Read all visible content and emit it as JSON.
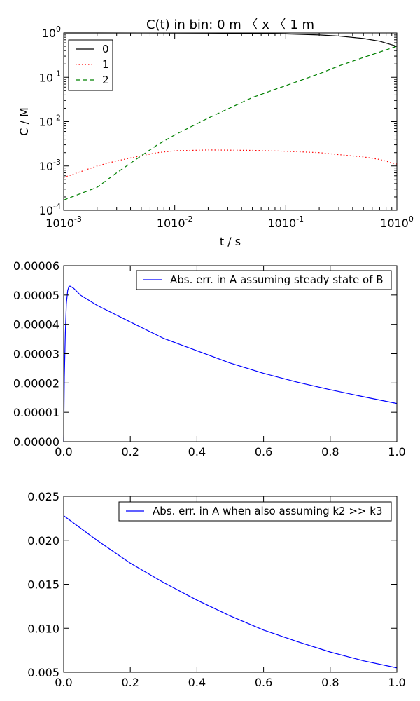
{
  "chart_data": [
    {
      "type": "line",
      "title": "C(t) in bin: 0 m 〈 x 〈 1 m",
      "xlabel": "t / s",
      "ylabel": "C / M",
      "xscale": "log",
      "yscale": "log",
      "xlim": [
        0.001,
        1
      ],
      "ylim": [
        0.0001,
        1
      ],
      "grid": false,
      "legend_position": "top-left",
      "xticks": [
        {
          "value": 0.001,
          "base": "10",
          "exp": "-3"
        },
        {
          "value": 0.01,
          "base": "10",
          "exp": "-2"
        },
        {
          "value": 0.1,
          "base": "10",
          "exp": "-1"
        },
        {
          "value": 1,
          "base": "10",
          "exp": "0"
        }
      ],
      "yticks": [
        {
          "value": 0.0001,
          "base": "10",
          "exp": "-4"
        },
        {
          "value": 0.001,
          "base": "10",
          "exp": "-3"
        },
        {
          "value": 0.01,
          "base": "10",
          "exp": "-2"
        },
        {
          "value": 0.1,
          "base": "10",
          "exp": "-1"
        },
        {
          "value": 1,
          "base": "10",
          "exp": "0"
        }
      ],
      "series": [
        {
          "name": "0",
          "color": "#000000",
          "dash": "solid",
          "x": [
            0.001,
            0.002,
            0.005,
            0.01,
            0.02,
            0.05,
            0.1,
            0.2,
            0.3,
            0.5,
            0.7,
            1.0
          ],
          "y": [
            0.9995,
            0.999,
            0.997,
            0.995,
            0.99,
            0.975,
            0.95,
            0.9,
            0.85,
            0.75,
            0.65,
            0.5
          ]
        },
        {
          "name": "1",
          "color": "#ff0000",
          "dash": "dotted",
          "x": [
            0.001,
            0.002,
            0.003,
            0.005,
            0.007,
            0.01,
            0.02,
            0.05,
            0.1,
            0.2,
            0.3,
            0.5,
            0.7,
            1.0
          ],
          "y": [
            0.00055,
            0.001,
            0.0013,
            0.0017,
            0.002,
            0.0022,
            0.0023,
            0.00225,
            0.00215,
            0.002,
            0.0018,
            0.0016,
            0.0014,
            0.0011
          ]
        },
        {
          "name": "2",
          "color": "#008000",
          "dash": "dashed",
          "x": [
            0.001,
            0.002,
            0.003,
            0.005,
            0.007,
            0.01,
            0.02,
            0.05,
            0.1,
            0.2,
            0.3,
            0.5,
            0.7,
            1.0
          ],
          "y": [
            0.00017,
            0.00033,
            0.0007,
            0.0017,
            0.003,
            0.005,
            0.012,
            0.035,
            0.065,
            0.12,
            0.18,
            0.28,
            0.37,
            0.5
          ]
        }
      ]
    },
    {
      "type": "line",
      "xlim": [
        0,
        1
      ],
      "ylim": [
        0,
        6e-05
      ],
      "grid": false,
      "legend_position": "top-right",
      "xticks": [
        "0.0",
        "0.2",
        "0.4",
        "0.6",
        "0.8",
        "1.0"
      ],
      "yticks": [
        "0.00000",
        "0.00001",
        "0.00002",
        "0.00003",
        "0.00004",
        "0.00005",
        "0.00006"
      ],
      "series": [
        {
          "name": "Abs. err. in A assuming steady state of B",
          "color": "#0000ff",
          "dash": "solid",
          "x": [
            0,
            0.002,
            0.005,
            0.008,
            0.012,
            0.016,
            0.02,
            0.03,
            0.05,
            0.1,
            0.2,
            0.3,
            0.4,
            0.5,
            0.6,
            0.7,
            0.8,
            0.9,
            1.0
          ],
          "y": [
            0,
            2.2e-05,
            3.7e-05,
            4.7e-05,
            5.15e-05,
            5.3e-05,
            5.3e-05,
            5.23e-05,
            5e-05,
            4.65e-05,
            4.08e-05,
            3.52e-05,
            3.1e-05,
            2.68e-05,
            2.33e-05,
            2.03e-05,
            1.77e-05,
            1.53e-05,
            1.3e-05
          ]
        }
      ]
    },
    {
      "type": "line",
      "xlim": [
        0,
        1
      ],
      "ylim": [
        0.005,
        0.025
      ],
      "grid": false,
      "legend_position": "top-right",
      "xticks": [
        "0.0",
        "0.2",
        "0.4",
        "0.6",
        "0.8",
        "1.0"
      ],
      "yticks": [
        "0.005",
        "0.010",
        "0.015",
        "0.020",
        "0.025"
      ],
      "series": [
        {
          "name": "Abs. err. in A when also assuming k2 >> k3",
          "color": "#0000ff",
          "dash": "solid",
          "x": [
            0,
            0.1,
            0.2,
            0.3,
            0.4,
            0.5,
            0.6,
            0.7,
            0.8,
            0.9,
            1.0
          ],
          "y": [
            0.0228,
            0.02,
            0.0174,
            0.0152,
            0.0132,
            0.0114,
            0.0098,
            0.0085,
            0.0073,
            0.0063,
            0.0055
          ]
        }
      ]
    }
  ]
}
